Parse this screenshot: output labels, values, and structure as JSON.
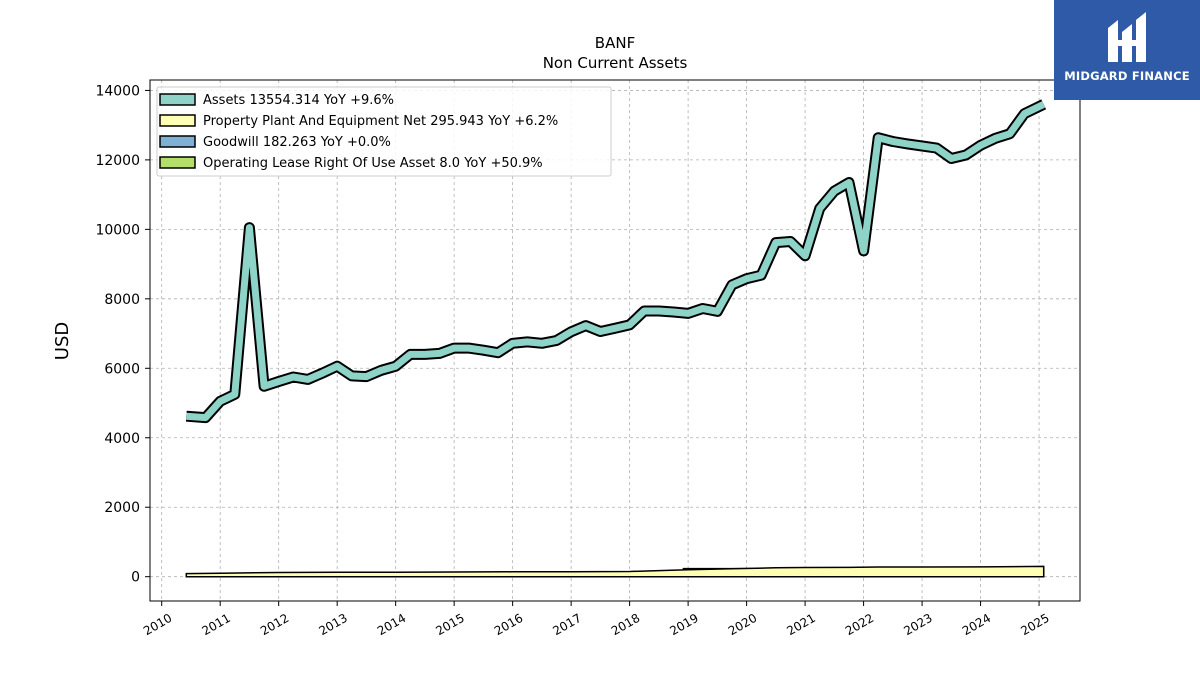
{
  "brand": {
    "name": "MIDGARD FINANCE",
    "bg": "#2f5aa8"
  },
  "chart_data": {
    "type": "area",
    "title": "BANF",
    "subtitle": "Non Current  Assets",
    "ylabel": "USD",
    "xlabel": "",
    "ylim": [
      -700,
      14300
    ],
    "xlim": [
      2009.8,
      2025.7
    ],
    "yticks": [
      0,
      2000,
      4000,
      6000,
      8000,
      10000,
      12000,
      14000
    ],
    "xticks": [
      2010,
      2011,
      2012,
      2013,
      2014,
      2015,
      2016,
      2017,
      2018,
      2019,
      2020,
      2021,
      2022,
      2023,
      2024,
      2025
    ],
    "grid": true,
    "legend_position": "top-left",
    "series": [
      {
        "name": "Assets",
        "legend": "Assets  13554.314 YoY +9.6%",
        "color": "#8dd3c7",
        "x": [
          2010.42,
          2010.75,
          2011.0,
          2011.25,
          2011.5,
          2011.75,
          2012.0,
          2012.25,
          2012.5,
          2012.75,
          2013.0,
          2013.25,
          2013.5,
          2013.75,
          2014.0,
          2014.25,
          2014.5,
          2014.75,
          2015.0,
          2015.25,
          2015.5,
          2015.75,
          2016.0,
          2016.25,
          2016.5,
          2016.75,
          2017.0,
          2017.25,
          2017.5,
          2017.75,
          2018.0,
          2018.25,
          2018.5,
          2018.75,
          2019.0,
          2019.25,
          2019.5,
          2019.75,
          2020.0,
          2020.25,
          2020.5,
          2020.75,
          2021.0,
          2021.25,
          2021.5,
          2021.75,
          2022.0,
          2022.25,
          2022.5,
          2022.75,
          2023.0,
          2023.25,
          2023.5,
          2023.75,
          2024.0,
          2024.25,
          2024.5,
          2024.75,
          2025.08
        ],
        "values": [
          4620,
          4580,
          5050,
          5250,
          10050,
          5480,
          5620,
          5750,
          5680,
          5860,
          6060,
          5780,
          5760,
          5940,
          6060,
          6400,
          6400,
          6430,
          6580,
          6580,
          6520,
          6450,
          6720,
          6760,
          6720,
          6800,
          7050,
          7230,
          7060,
          7150,
          7250,
          7650,
          7650,
          7620,
          7580,
          7720,
          7640,
          8400,
          8580,
          8680,
          9620,
          9650,
          9240,
          10600,
          11100,
          11350,
          9380,
          12640,
          12530,
          12460,
          12400,
          12340,
          12040,
          12140,
          12420,
          12620,
          12750,
          13330,
          13600
        ]
      },
      {
        "name": "Property Plant And Equipment Net",
        "legend": "Property Plant And Equipment Net  295.943 YoY +6.2%",
        "color": "#ffffb3",
        "x": [
          2010.42,
          2011.0,
          2012.0,
          2013.0,
          2014.0,
          2015.0,
          2016.0,
          2017.0,
          2018.0,
          2018.5,
          2019.0,
          2019.75,
          2020.5,
          2021.0,
          2021.75,
          2022.25,
          2023.0,
          2024.0,
          2025.08
        ],
        "values": [
          90,
          100,
          120,
          125,
          130,
          135,
          140,
          142,
          150,
          175,
          200,
          230,
          255,
          265,
          268,
          280,
          278,
          282,
          296
        ]
      },
      {
        "name": "Goodwill",
        "legend": "Goodwill  182.263 YoY +0.0%",
        "color": "#80b1d3",
        "x": [
          2010.42,
          2011.0,
          2012.0,
          2013.0,
          2014.0,
          2015.0,
          2016.0,
          2017.0,
          2018.0,
          2018.5,
          2019.0,
          2019.75,
          2020.5,
          2021.0,
          2022.0,
          2023.0,
          2024.0,
          2025.08
        ],
        "values": [
          0,
          0,
          0,
          0,
          0,
          0,
          30,
          30,
          30,
          70,
          70,
          160,
          160,
          160,
          182,
          182,
          182,
          182
        ]
      },
      {
        "name": "Operating Lease Right Of Use Asset",
        "legend": "Operating Lease Right Of Use Asset  8.0 YoY +50.9%",
        "color": "#b3de69",
        "x": [
          2018.92,
          2020.0,
          2021.0,
          2022.0,
          2023.0,
          2024.0,
          2025.08
        ],
        "values": [
          5,
          6,
          6,
          6,
          6,
          6,
          8
        ]
      }
    ]
  }
}
